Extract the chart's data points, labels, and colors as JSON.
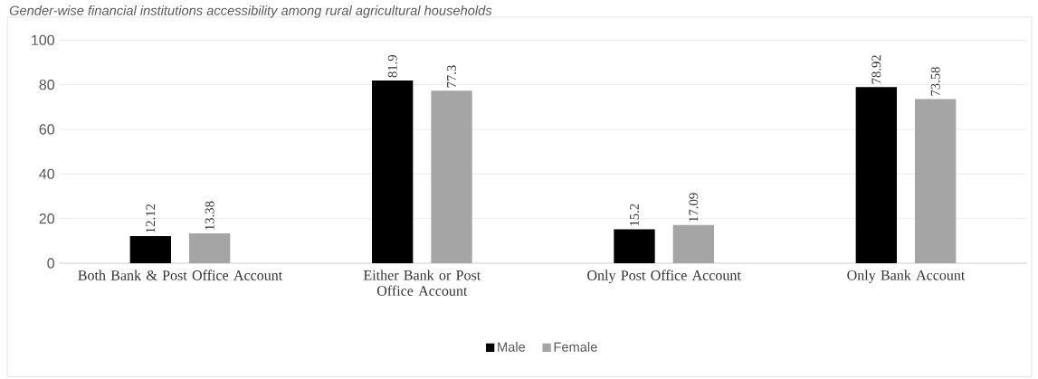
{
  "chart_data": {
    "type": "bar",
    "title": "Gender-wise financial institutions accessibility among rural agricultural households",
    "categories": [
      "Both Bank & Post Office Account",
      "Either Bank or Post Office Account",
      "Only Post Office Account",
      "Only Bank Account"
    ],
    "series": [
      {
        "name": "Male",
        "color": "#000000",
        "values": [
          12.12,
          81.9,
          15.2,
          78.92
        ]
      },
      {
        "name": "Female",
        "color": "#a5a5a5",
        "values": [
          13.38,
          77.3,
          17.09,
          73.58
        ]
      }
    ],
    "ylim": [
      0,
      100
    ],
    "yticks": [
      0,
      20,
      40,
      60,
      80,
      100
    ],
    "grid": "y",
    "legend": "bottom",
    "data_labels": true
  }
}
